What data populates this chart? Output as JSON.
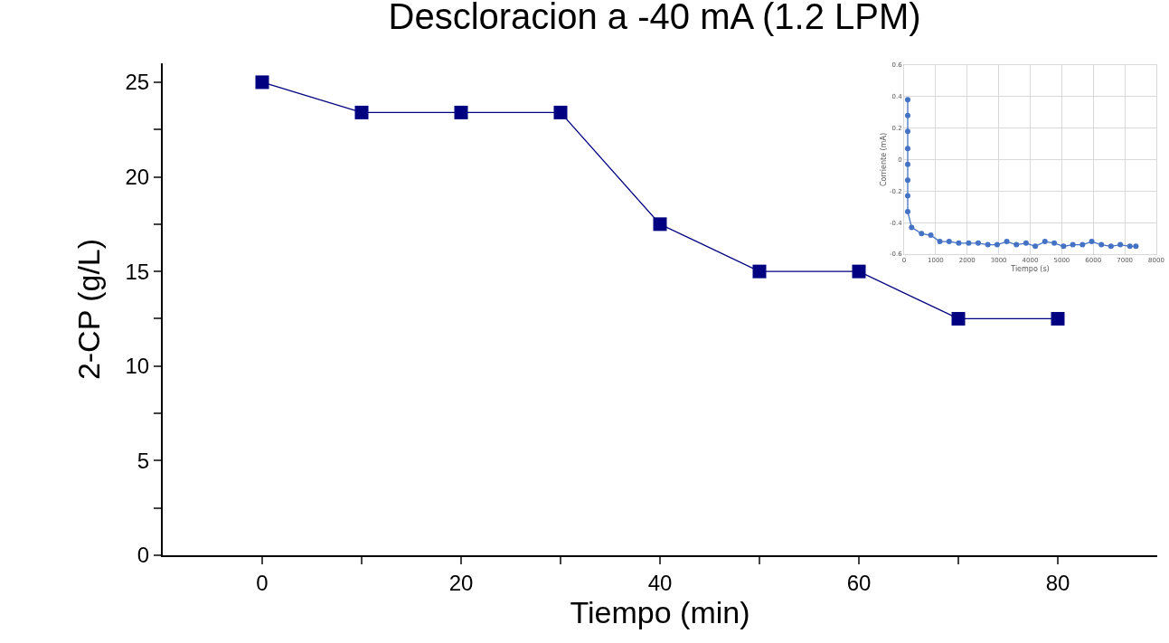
{
  "chart_data": [
    {
      "type": "line",
      "title": "Descloracion a -40 mA (1.2 LPM)",
      "xlabel": "Tiempo (min)",
      "ylabel": "2-CP (g/L)",
      "x": [
        0,
        10,
        20,
        30,
        40,
        50,
        60,
        70,
        80
      ],
      "series": [
        {
          "color": "#000080",
          "values": [
            25,
            23.4,
            23.4,
            23.4,
            17.5,
            15,
            15,
            12.5,
            12.5
          ]
        }
      ],
      "marker": "square",
      "line_style": "solid",
      "grid": false,
      "xlim": [
        -10,
        90
      ],
      "xticks": [
        0,
        {
          "value": 10,
          "label": null
        },
        20,
        {
          "value": 30,
          "label": null
        },
        40,
        {
          "value": 50,
          "label": null
        },
        60,
        {
          "value": 70,
          "label": null
        },
        80
      ],
      "ylim": [
        0,
        26
      ],
      "yticks": [
        0,
        {
          "value": 2.5,
          "label": null
        },
        5,
        {
          "value": 7.5,
          "label": null
        },
        10,
        {
          "value": 12.5,
          "label": null
        },
        15,
        {
          "value": 17.5,
          "label": null
        },
        20,
        {
          "value": 22.5,
          "label": null
        },
        25
      ]
    },
    {
      "type": "line",
      "xlabel": "Tiempo (s)",
      "ylabel": "Corriente (mA)",
      "x": [
        114,
        114,
        114,
        114,
        114,
        114,
        114,
        114,
        238,
        552,
        848,
        1133,
        1429,
        1733,
        2048,
        2352,
        2657,
        2952,
        3257,
        3562,
        3867,
        4162,
        4467,
        4762,
        5057,
        5352,
        5657,
        5952,
        6257,
        6562,
        6857,
        7162,
        7352
      ],
      "series": [
        {
          "color": "#4472c4",
          "values": [
            0.38,
            0.28,
            0.18,
            0.07,
            -0.03,
            -0.13,
            -0.23,
            -0.33,
            -0.43,
            -0.47,
            -0.48,
            -0.52,
            -0.52,
            -0.53,
            -0.53,
            -0.53,
            -0.54,
            -0.54,
            -0.52,
            -0.54,
            -0.53,
            -0.55,
            -0.52,
            -0.53,
            -0.55,
            -0.54,
            -0.54,
            -0.52,
            -0.54,
            -0.55,
            -0.54,
            -0.55,
            -0.55
          ]
        }
      ],
      "marker": "circle",
      "line_style": "solid",
      "grid": true,
      "xlim": [
        0,
        8000
      ],
      "xticks": [
        0,
        1000,
        2000,
        3000,
        4000,
        5000,
        6000,
        7000,
        8000
      ],
      "ylim": [
        -0.6,
        0.6
      ],
      "yticks": [
        -0.6,
        -0.4,
        -0.2,
        0,
        0.2,
        0.4,
        0.6
      ]
    }
  ]
}
